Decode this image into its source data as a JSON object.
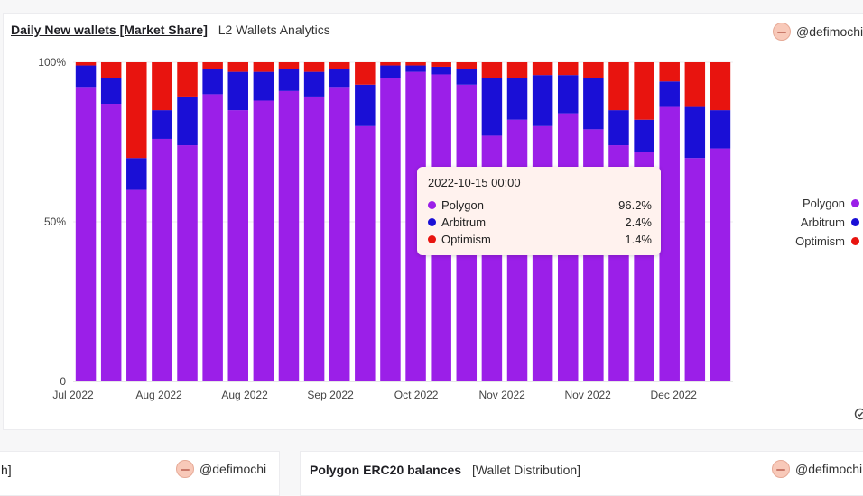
{
  "main_panel": {
    "title": "Daily New wallets [Market Share]",
    "subtitle": "L2 Wallets Analytics",
    "author": "@defimochi"
  },
  "legend": [
    {
      "name": "Polygon",
      "color": "#9b1fe8"
    },
    {
      "name": "Arbitrum",
      "color": "#1a0fd6"
    },
    {
      "name": "Optimism",
      "color": "#e8140f"
    }
  ],
  "tooltip": {
    "date": "2022-10-15 00:00",
    "rows": [
      {
        "name": "Polygon",
        "value": "96.2%",
        "color": "#9b1fe8"
      },
      {
        "name": "Arbitrum",
        "value": "2.4%",
        "color": "#1a0fd6"
      },
      {
        "name": "Optimism",
        "value": "1.4%",
        "color": "#e8140f"
      }
    ]
  },
  "bottom_left": {
    "title_fragment": "h]",
    "author": "@defimochi"
  },
  "bottom_right": {
    "title": "Polygon ERC20 balances",
    "subtitle": "[Wallet Distribution]",
    "author": "@defimochi"
  },
  "chart_data": {
    "type": "bar",
    "stacked": true,
    "normalized": true,
    "x_tick_labels": [
      "Jul 2022",
      "Aug 2022",
      "Aug 2022",
      "Sep 2022",
      "Oct 2022",
      "Nov 2022",
      "Nov 2022",
      "Dec 2022"
    ],
    "y_tick_labels": [
      "0",
      "50%",
      "100%"
    ],
    "ylim": [
      0,
      100
    ],
    "x": [
      "2022-07-01",
      "2022-07-15",
      "2022-07-20",
      "2022-07-23",
      "2022-07-28",
      "2022-08-05",
      "2022-08-12",
      "2022-08-20",
      "2022-08-28",
      "2022-09-05",
      "2022-09-12",
      "2022-09-20",
      "2022-09-28",
      "2022-10-05",
      "2022-10-15",
      "2022-10-22",
      "2022-10-28",
      "2022-11-05",
      "2022-11-12",
      "2022-11-20",
      "2022-11-28",
      "2022-12-05",
      "2022-12-10",
      "2022-12-15",
      "2022-12-20",
      "2022-12-28"
    ],
    "series": [
      {
        "name": "Polygon",
        "color": "#9b1fe8",
        "values": [
          92,
          87,
          60,
          76,
          74,
          90,
          85,
          88,
          91,
          89,
          92,
          80,
          95,
          97,
          96.2,
          93,
          77,
          82,
          80,
          84,
          79,
          74,
          72,
          86,
          70,
          73
        ]
      },
      {
        "name": "Arbitrum",
        "color": "#1a0fd6",
        "values": [
          7,
          8,
          10,
          9,
          15,
          8,
          12,
          9,
          7,
          8,
          6,
          13,
          4,
          2,
          2.4,
          5,
          18,
          13,
          16,
          12,
          16,
          11,
          10,
          8,
          16,
          12
        ]
      },
      {
        "name": "Optimism",
        "color": "#e8140f",
        "values": [
          1,
          5,
          30,
          15,
          11,
          2,
          3,
          3,
          2,
          3,
          2,
          7,
          1,
          1,
          1.4,
          2,
          5,
          5,
          4,
          4,
          5,
          15,
          18,
          6,
          14,
          15
        ]
      }
    ],
    "grid": true,
    "legend_position": "right"
  }
}
